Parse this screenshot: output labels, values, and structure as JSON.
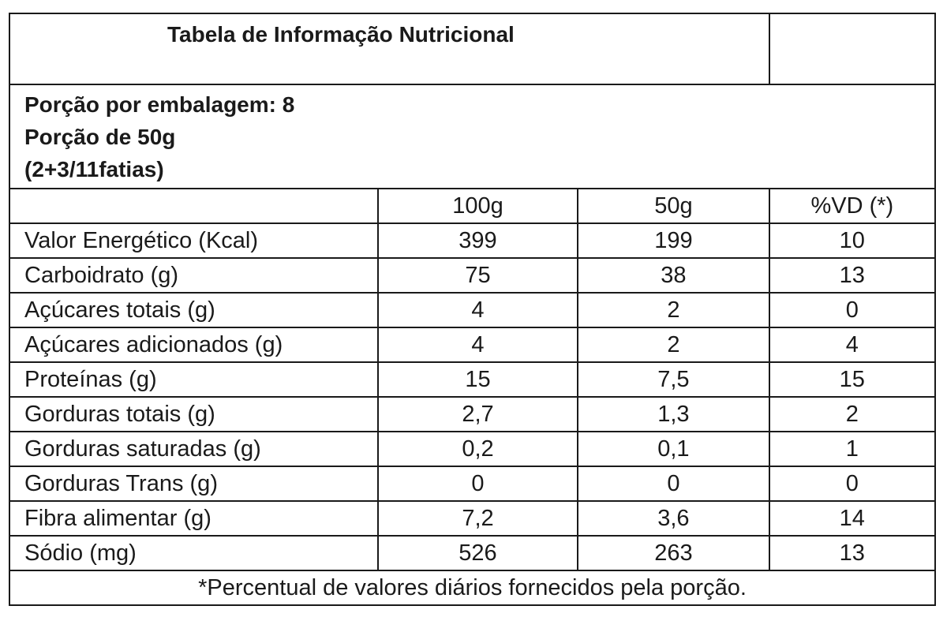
{
  "title": "Tabela de Informação Nutricional",
  "serving": {
    "line1": "Porção por embalagem: 8",
    "line2": "Porção de 50g",
    "line3": "(2+3/11fatias)"
  },
  "columns": [
    "100g",
    "50g",
    "%VD (*)"
  ],
  "rows": [
    {
      "label": "Valor Energético (Kcal)",
      "per100": "399",
      "per50": "199",
      "vd": "10"
    },
    {
      "label": "Carboidrato (g)",
      "per100": "75",
      "per50": "38",
      "vd": "13"
    },
    {
      "label": "Açúcares totais (g)",
      "per100": "4",
      "per50": "2",
      "vd": "0"
    },
    {
      "label": "Açúcares adicionados (g)",
      "per100": "4",
      "per50": "2",
      "vd": "4"
    },
    {
      "label": "Proteínas (g)",
      "per100": "15",
      "per50": "7,5",
      "vd": "15"
    },
    {
      "label": "Gorduras totais (g)",
      "per100": "2,7",
      "per50": "1,3",
      "vd": "2"
    },
    {
      "label": "Gorduras saturadas (g)",
      "per100": "0,2",
      "per50": "0,1",
      "vd": "1"
    },
    {
      "label": "Gorduras Trans (g)",
      "per100": "0",
      "per50": "0",
      "vd": "0"
    },
    {
      "label": "Fibra alimentar (g)",
      "per100": "7,2",
      "per50": "3,6",
      "vd": "14"
    },
    {
      "label": "Sódio (mg)",
      "per100": "526",
      "per50": "263",
      "vd": "13"
    }
  ],
  "footnote": "*Percentual de valores diários fornecidos pela porção."
}
